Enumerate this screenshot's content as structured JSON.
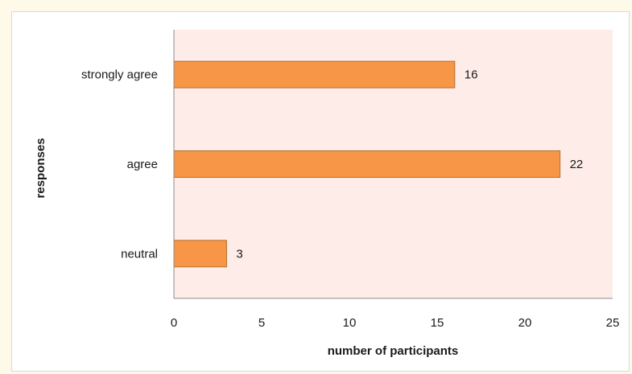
{
  "chart_data": {
    "type": "bar",
    "orientation": "horizontal",
    "categories": [
      "strongly agree",
      "agree",
      "neutral"
    ],
    "values": [
      16,
      22,
      3
    ],
    "data_labels": [
      "16",
      "22",
      "3"
    ],
    "xlabel": "number of participants",
    "ylabel": "responses",
    "xlim": [
      0,
      25
    ],
    "x_ticks": [
      "0",
      "5",
      "10",
      "15",
      "20",
      "25"
    ],
    "grid": false,
    "legend": "none",
    "colors": {
      "bar_fill": "#f79646",
      "bar_stroke": "#b66d30",
      "plot_background": "#fdece7",
      "page_background": "#fef9e8",
      "axis": "#8c8c8c"
    }
  }
}
